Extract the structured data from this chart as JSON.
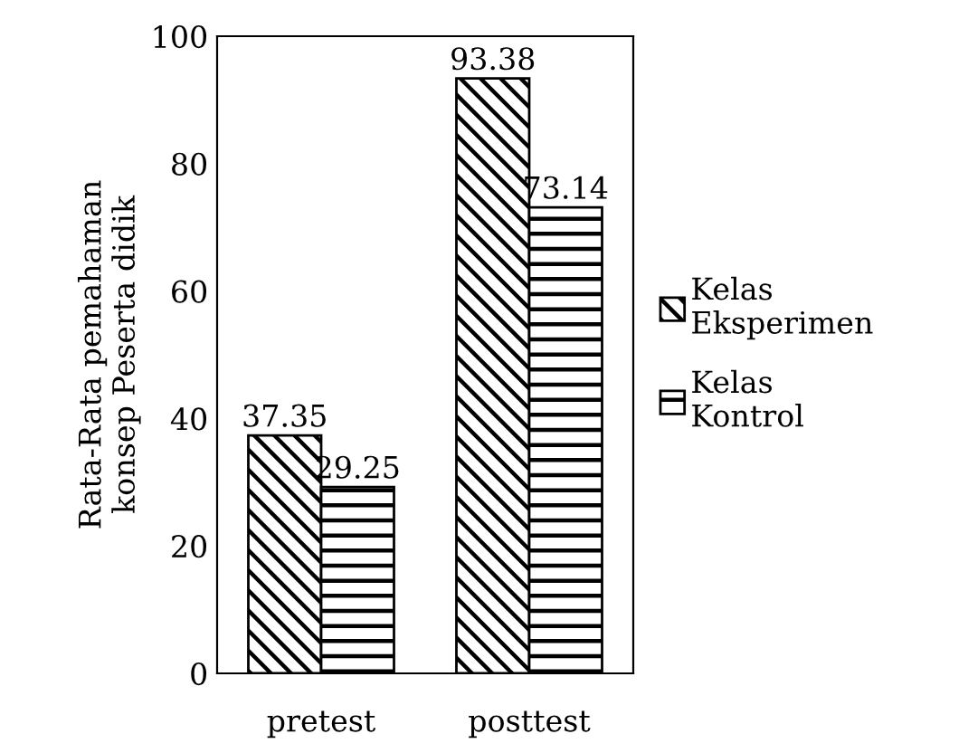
{
  "chart_data": {
    "type": "bar",
    "ylabel": "Rata-Rata pemahaman\nkonsep Peserta didik",
    "categories": [
      "pretest",
      "posttest"
    ],
    "series": [
      {
        "name": "Kelas Eksperimen",
        "color": "#000000",
        "values": [
          37.35,
          93.38
        ]
      },
      {
        "name": "Kelas Kontrol",
        "color": "#000000",
        "values": [
          29.25,
          73.14
        ]
      }
    ],
    "ylim": [
      0,
      100
    ],
    "yticks": [
      0,
      20,
      40,
      60,
      80,
      100
    ],
    "grid": false,
    "legend": "right",
    "data_labels": true
  }
}
